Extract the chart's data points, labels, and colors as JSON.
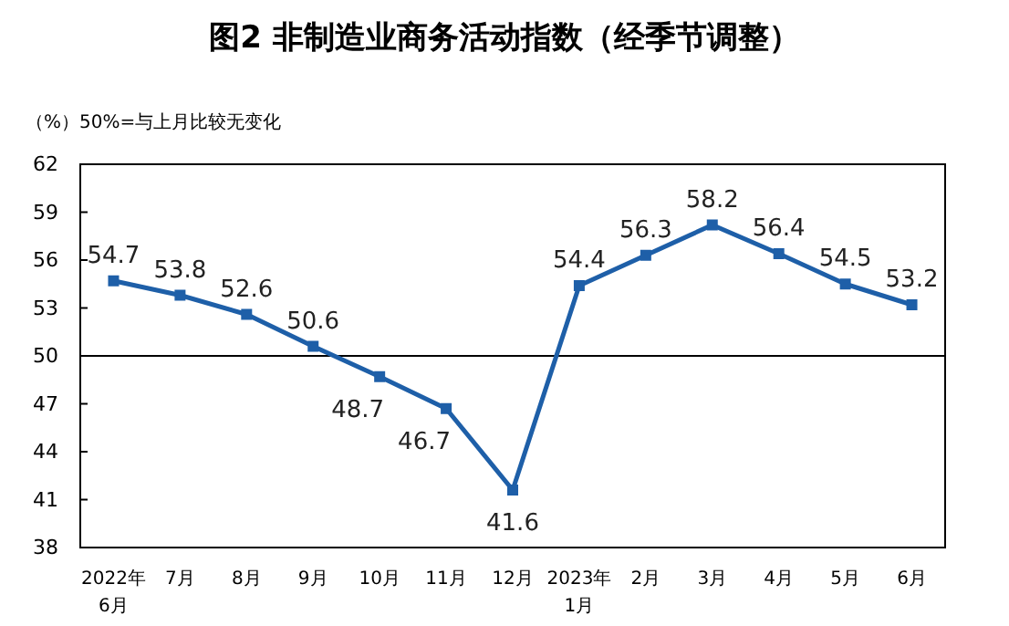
{
  "chart_data": {
    "type": "line",
    "title": "图2  非制造业商务活动指数（经季节调整）",
    "annotations": [
      "（%）50%=与上月比较无变化"
    ],
    "categories": [
      "2022年\n6月",
      "7月",
      "8月",
      "9月",
      "10月",
      "11月",
      "12月",
      "2023年\n1月",
      "2月",
      "3月",
      "4月",
      "5月",
      "6月"
    ],
    "series": [
      {
        "color": "#1e5fa8",
        "values": [
          54.7,
          53.8,
          52.6,
          50.6,
          48.7,
          46.7,
          41.6,
          54.4,
          56.3,
          58.2,
          56.4,
          54.5,
          53.2
        ]
      }
    ],
    "ylim": [
      38,
      62
    ],
    "yticks": [
      38,
      41,
      44,
      47,
      50,
      53,
      56,
      59,
      62
    ],
    "ref_lines": [
      {
        "axis": "y",
        "value": 50,
        "color": "#000000"
      }
    ],
    "marker": "square",
    "line_style": "solid",
    "data_labels": true,
    "grid": false
  }
}
